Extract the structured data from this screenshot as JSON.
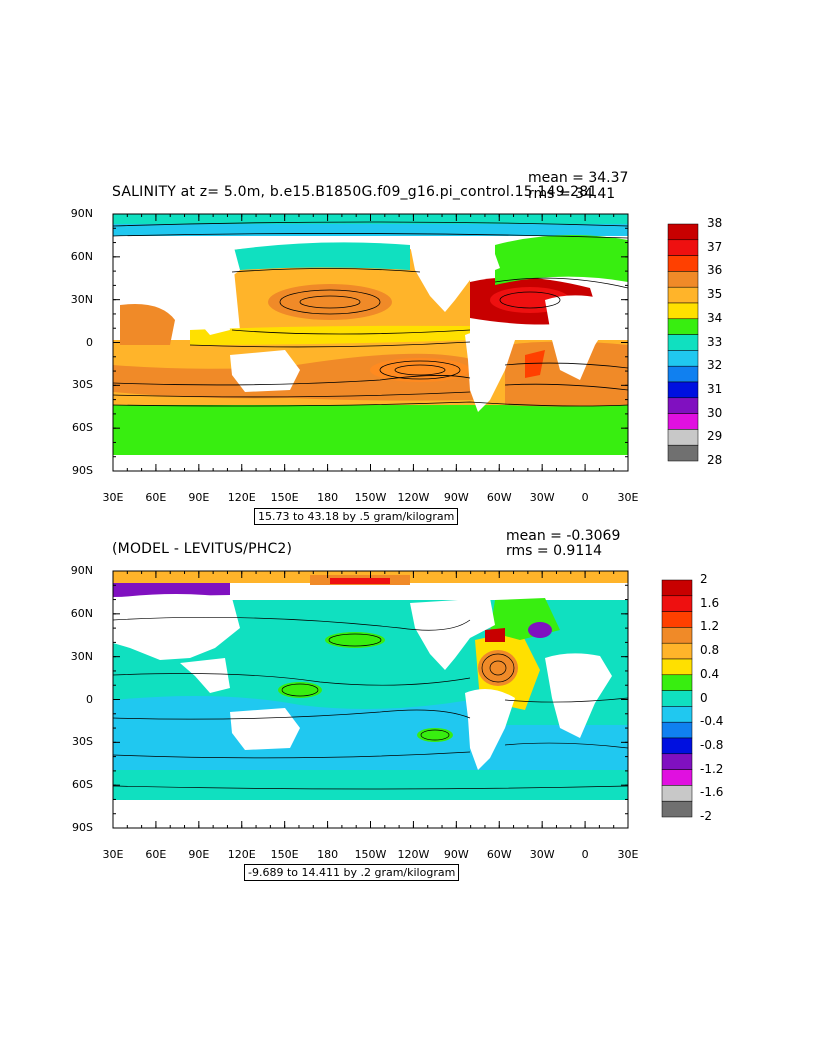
{
  "top_panel": {
    "title": "SALINITY at z=    5.0m, b.e15.B1850G.f09_g16.pi_control.15 149-281",
    "mean": "mean = 34.37",
    "rms": "rms = 34.41",
    "range": "15.73 to 43.18 by .5 gram/kilogram",
    "colorbar_labels": [
      "38",
      "37",
      "36",
      "35",
      "34",
      "33",
      "32",
      "31",
      "30",
      "29",
      "28"
    ],
    "colorbar_colors": [
      "#c80000",
      "#ee1010",
      "#ff4000",
      "#f08a28",
      "#ffb42a",
      "#ffe000",
      "#38ee10",
      "#10e0c0",
      "#20c8f0",
      "#1080f0",
      "#0010e0",
      "#8010c0",
      "#e010e0",
      "#c8c8c8",
      "#707070"
    ]
  },
  "bottom_panel": {
    "title": "(MODEL - LEVITUS/PHC2)",
    "mean": "mean = -0.3069",
    "rms": "rms = 0.9114",
    "range": "-9.689 to 14.411 by .2 gram/kilogram",
    "colorbar_labels": [
      "2",
      "1.6",
      "1.2",
      "0.8",
      "0.4",
      "0",
      "-0.4",
      "-0.8",
      "-1.2",
      "-1.6",
      "-2"
    ],
    "colorbar_colors": [
      "#c80000",
      "#ee1010",
      "#ff4000",
      "#f08a28",
      "#ffb42a",
      "#ffe000",
      "#38ee10",
      "#10e0c0",
      "#20c8f0",
      "#1080f0",
      "#0010e0",
      "#8010c0",
      "#e010e0",
      "#c8c8c8",
      "#707070"
    ]
  },
  "axes": {
    "lat_labels": [
      "90N",
      "60N",
      "30N",
      "0",
      "30S",
      "60S",
      "90S"
    ],
    "lon_labels": [
      "30E",
      "60E",
      "90E",
      "120E",
      "150E",
      "180",
      "150W",
      "120W",
      "90W",
      "60W",
      "30W",
      "0",
      "30E"
    ]
  },
  "colors": {
    "land": "#ffffff",
    "contour": "#000000",
    "salinity_ocean_base": "#38ee10",
    "salinity_subtropical": "#f08a28",
    "salinity_tropical": "#ffb42a",
    "salinity_high": "#c80000",
    "diff_ocean_base": "#10e0c0",
    "diff_negative": "#20c8f0",
    "diff_positive": "#38ee10"
  }
}
